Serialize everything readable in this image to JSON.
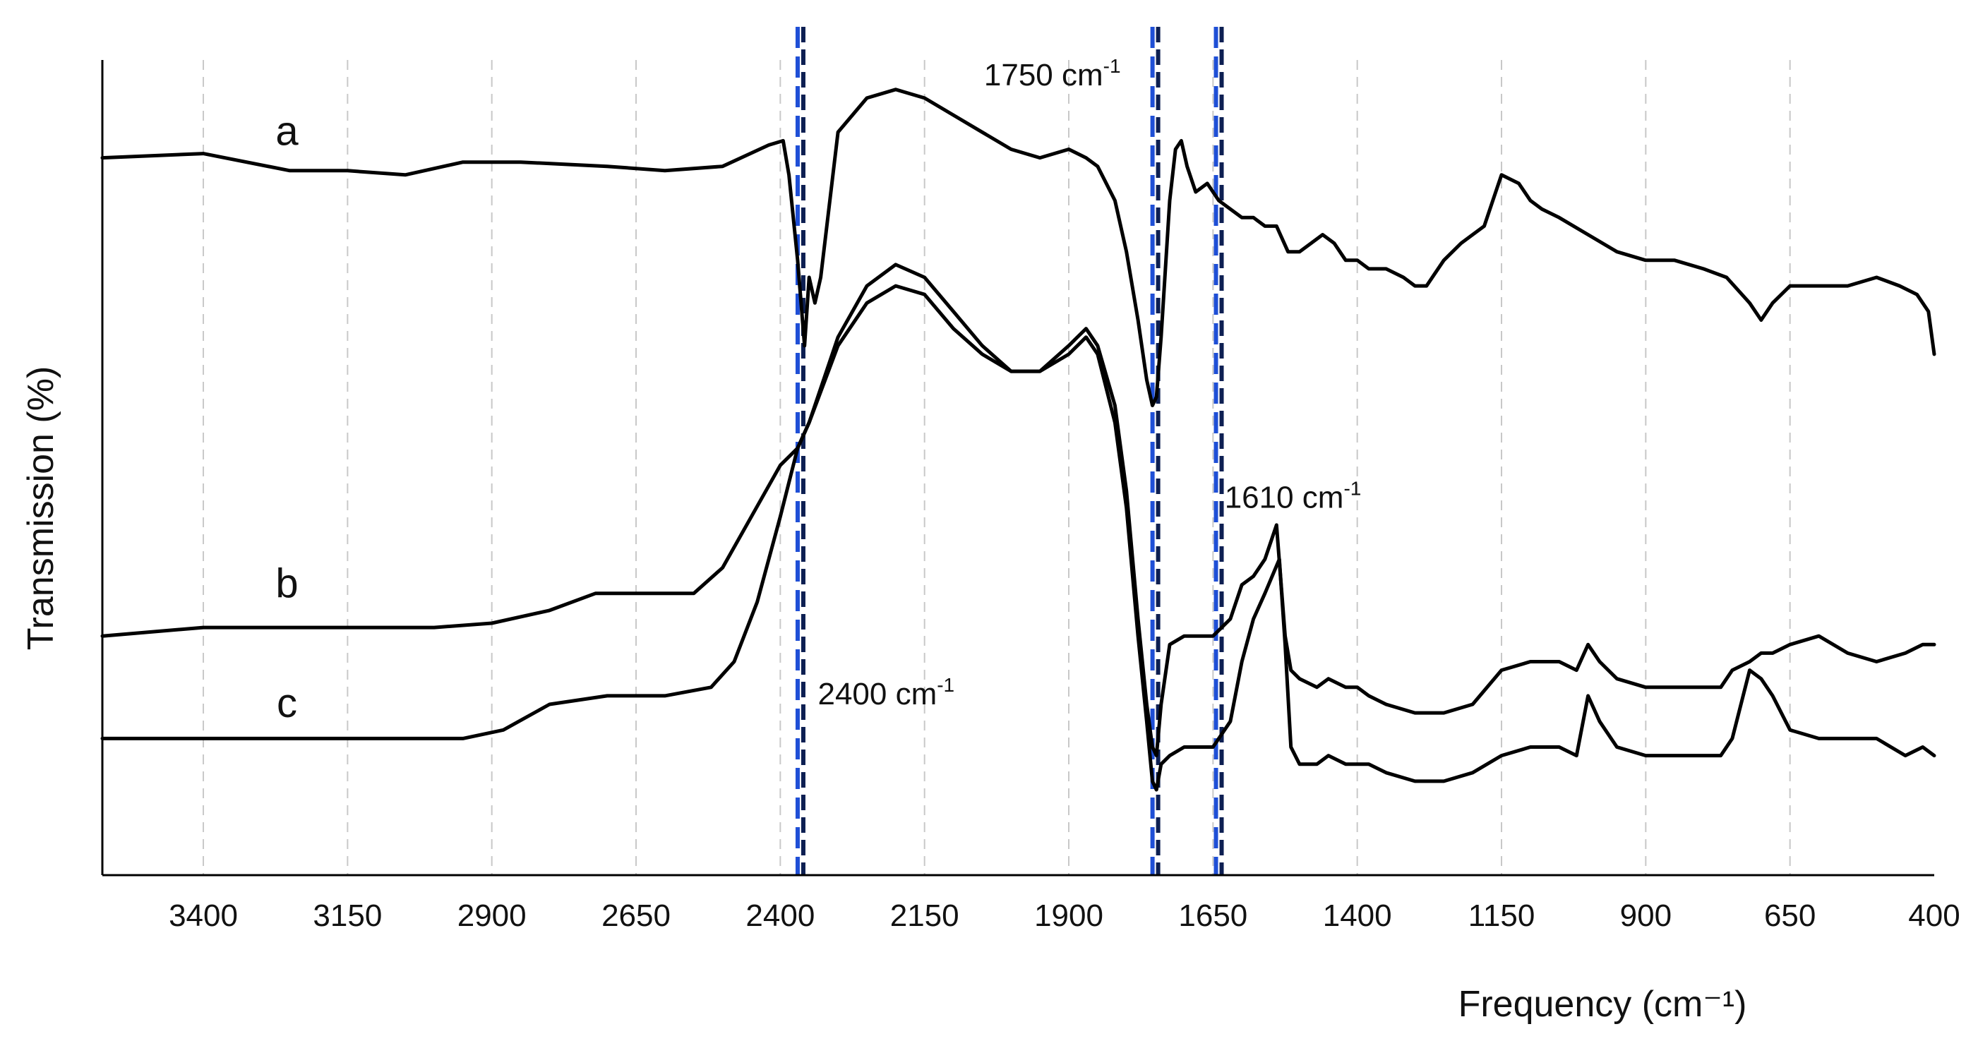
{
  "chart_data": {
    "type": "line",
    "xlabel": "Frequency (cm⁻¹)",
    "ylabel": "Transmission (%)",
    "x_reversed": true,
    "xlim": [
      3575,
      400
    ],
    "ylim": [
      0,
      100
    ],
    "xticks": [
      3400,
      3150,
      2900,
      2650,
      2400,
      2150,
      1900,
      1650,
      1400,
      1150,
      900,
      650,
      400
    ],
    "xtick_labels": [
      "3400",
      "3150",
      "2900",
      "2650",
      "2400",
      "2150",
      "1900",
      "1650",
      "1400",
      "1150",
      "900",
      "650",
      "400"
    ],
    "grid": "vertical dashed",
    "yticks_visible": false,
    "series": [
      {
        "name": "a",
        "points": [
          [
            3575,
            84
          ],
          [
            3400,
            84.5
          ],
          [
            3250,
            82.5
          ],
          [
            3150,
            82.5
          ],
          [
            3050,
            82
          ],
          [
            2950,
            83.5
          ],
          [
            2850,
            83.5
          ],
          [
            2700,
            83
          ],
          [
            2600,
            82.5
          ],
          [
            2500,
            83
          ],
          [
            2420,
            85.5
          ],
          [
            2395,
            86
          ],
          [
            2385,
            82
          ],
          [
            2370,
            72
          ],
          [
            2358,
            62
          ],
          [
            2350,
            70
          ],
          [
            2340,
            67
          ],
          [
            2330,
            70
          ],
          [
            2300,
            87
          ],
          [
            2250,
            91
          ],
          [
            2200,
            92
          ],
          [
            2150,
            91
          ],
          [
            2100,
            89
          ],
          [
            2050,
            87
          ],
          [
            2000,
            85
          ],
          [
            1950,
            84
          ],
          [
            1900,
            85
          ],
          [
            1870,
            84
          ],
          [
            1850,
            83
          ],
          [
            1820,
            79
          ],
          [
            1800,
            73
          ],
          [
            1780,
            65
          ],
          [
            1765,
            58
          ],
          [
            1755,
            55
          ],
          [
            1748,
            56
          ],
          [
            1740,
            63
          ],
          [
            1725,
            79
          ],
          [
            1715,
            85
          ],
          [
            1705,
            86
          ],
          [
            1695,
            83
          ],
          [
            1680,
            80
          ],
          [
            1660,
            81
          ],
          [
            1640,
            79
          ],
          [
            1620,
            78
          ],
          [
            1600,
            77
          ],
          [
            1580,
            77
          ],
          [
            1560,
            76
          ],
          [
            1540,
            76
          ],
          [
            1520,
            73
          ],
          [
            1500,
            73
          ],
          [
            1480,
            74
          ],
          [
            1460,
            75
          ],
          [
            1440,
            74
          ],
          [
            1420,
            72
          ],
          [
            1400,
            72
          ],
          [
            1380,
            71
          ],
          [
            1350,
            71
          ],
          [
            1320,
            70
          ],
          [
            1300,
            69
          ],
          [
            1280,
            69
          ],
          [
            1250,
            72
          ],
          [
            1220,
            74
          ],
          [
            1200,
            75
          ],
          [
            1180,
            76
          ],
          [
            1160,
            80
          ],
          [
            1150,
            82
          ],
          [
            1120,
            81
          ],
          [
            1100,
            79
          ],
          [
            1080,
            78
          ],
          [
            1050,
            77
          ],
          [
            1000,
            75
          ],
          [
            950,
            73
          ],
          [
            900,
            72
          ],
          [
            850,
            72
          ],
          [
            800,
            71
          ],
          [
            760,
            70
          ],
          [
            720,
            67
          ],
          [
            700,
            65
          ],
          [
            680,
            67
          ],
          [
            650,
            69
          ],
          [
            600,
            69
          ],
          [
            550,
            69
          ],
          [
            500,
            70
          ],
          [
            460,
            69
          ],
          [
            430,
            68
          ],
          [
            410,
            66
          ],
          [
            400,
            61
          ]
        ]
      },
      {
        "name": "b",
        "points": [
          [
            3575,
            28
          ],
          [
            3400,
            29
          ],
          [
            3200,
            29
          ],
          [
            3000,
            29
          ],
          [
            2900,
            29.5
          ],
          [
            2800,
            31
          ],
          [
            2720,
            33
          ],
          [
            2650,
            33
          ],
          [
            2550,
            33
          ],
          [
            2500,
            36
          ],
          [
            2450,
            42
          ],
          [
            2400,
            48
          ],
          [
            2370,
            50
          ],
          [
            2350,
            53
          ],
          [
            2300,
            63
          ],
          [
            2250,
            69
          ],
          [
            2200,
            71.5
          ],
          [
            2150,
            70
          ],
          [
            2100,
            66
          ],
          [
            2050,
            62
          ],
          [
            2000,
            59
          ],
          [
            1950,
            59
          ],
          [
            1900,
            62
          ],
          [
            1870,
            64
          ],
          [
            1850,
            62
          ],
          [
            1820,
            55
          ],
          [
            1800,
            45
          ],
          [
            1780,
            30
          ],
          [
            1765,
            20
          ],
          [
            1755,
            15
          ],
          [
            1748,
            14
          ],
          [
            1740,
            20
          ],
          [
            1725,
            27
          ],
          [
            1700,
            28
          ],
          [
            1650,
            28
          ],
          [
            1620,
            30
          ],
          [
            1600,
            34
          ],
          [
            1580,
            35
          ],
          [
            1560,
            37
          ],
          [
            1540,
            41
          ],
          [
            1525,
            28
          ],
          [
            1515,
            24
          ],
          [
            1500,
            23
          ],
          [
            1470,
            22
          ],
          [
            1450,
            23
          ],
          [
            1420,
            22
          ],
          [
            1400,
            22
          ],
          [
            1380,
            21
          ],
          [
            1350,
            20
          ],
          [
            1300,
            19
          ],
          [
            1250,
            19
          ],
          [
            1200,
            20
          ],
          [
            1150,
            24
          ],
          [
            1100,
            25
          ],
          [
            1050,
            25
          ],
          [
            1020,
            24
          ],
          [
            1000,
            27
          ],
          [
            980,
            25
          ],
          [
            950,
            23
          ],
          [
            900,
            22
          ],
          [
            850,
            22
          ],
          [
            800,
            22
          ],
          [
            770,
            22
          ],
          [
            750,
            24
          ],
          [
            720,
            25
          ],
          [
            700,
            26
          ],
          [
            680,
            26
          ],
          [
            650,
            27
          ],
          [
            600,
            28
          ],
          [
            550,
            26
          ],
          [
            500,
            25
          ],
          [
            450,
            26
          ],
          [
            420,
            27
          ],
          [
            400,
            27
          ]
        ]
      },
      {
        "name": "c",
        "points": [
          [
            3575,
            16
          ],
          [
            3400,
            16
          ],
          [
            3200,
            16
          ],
          [
            3000,
            16
          ],
          [
            2950,
            16
          ],
          [
            2880,
            17
          ],
          [
            2800,
            20
          ],
          [
            2700,
            21
          ],
          [
            2600,
            21
          ],
          [
            2520,
            22
          ],
          [
            2480,
            25
          ],
          [
            2440,
            32
          ],
          [
            2400,
            42
          ],
          [
            2370,
            50
          ],
          [
            2350,
            53
          ],
          [
            2300,
            62
          ],
          [
            2250,
            67
          ],
          [
            2200,
            69
          ],
          [
            2150,
            68
          ],
          [
            2100,
            64
          ],
          [
            2050,
            61
          ],
          [
            2000,
            59
          ],
          [
            1950,
            59
          ],
          [
            1900,
            61
          ],
          [
            1870,
            63
          ],
          [
            1850,
            61
          ],
          [
            1820,
            53
          ],
          [
            1800,
            43
          ],
          [
            1780,
            28
          ],
          [
            1765,
            18
          ],
          [
            1755,
            11
          ],
          [
            1748,
            10
          ],
          [
            1740,
            13
          ],
          [
            1725,
            14
          ],
          [
            1700,
            15
          ],
          [
            1650,
            15
          ],
          [
            1620,
            18
          ],
          [
            1600,
            25
          ],
          [
            1580,
            30
          ],
          [
            1560,
            33
          ],
          [
            1535,
            37
          ],
          [
            1525,
            27
          ],
          [
            1515,
            15
          ],
          [
            1500,
            13
          ],
          [
            1470,
            13
          ],
          [
            1450,
            14
          ],
          [
            1420,
            13
          ],
          [
            1400,
            13
          ],
          [
            1380,
            13
          ],
          [
            1350,
            12
          ],
          [
            1300,
            11
          ],
          [
            1250,
            11
          ],
          [
            1200,
            12
          ],
          [
            1150,
            14
          ],
          [
            1100,
            15
          ],
          [
            1050,
            15
          ],
          [
            1020,
            14
          ],
          [
            1000,
            21
          ],
          [
            980,
            18
          ],
          [
            950,
            15
          ],
          [
            900,
            14
          ],
          [
            850,
            14
          ],
          [
            800,
            14
          ],
          [
            770,
            14
          ],
          [
            750,
            16
          ],
          [
            720,
            24
          ],
          [
            700,
            23
          ],
          [
            680,
            21
          ],
          [
            650,
            17
          ],
          [
            600,
            16
          ],
          [
            550,
            16
          ],
          [
            500,
            16
          ],
          [
            450,
            14
          ],
          [
            420,
            15
          ],
          [
            400,
            14
          ]
        ]
      }
    ],
    "reference_lines": [
      {
        "x": 2365,
        "label": "2400 cm",
        "superscript": "-1",
        "color_outer": "#1f4fd6",
        "color_inner": "#0d1f52"
      },
      {
        "x": 1750,
        "label": "1750 cm",
        "superscript": "-1",
        "color_outer": "#1f4fd6",
        "color_inner": "#0d1f52"
      },
      {
        "x": 1640,
        "label": "1610 cm",
        "superscript": "-1",
        "color_outer": "#1f4fd6",
        "color_inner": "#0d1f52"
      }
    ],
    "colors": {
      "line": "#000000",
      "grid": "#c8c8c8",
      "axis": "#000000"
    }
  }
}
